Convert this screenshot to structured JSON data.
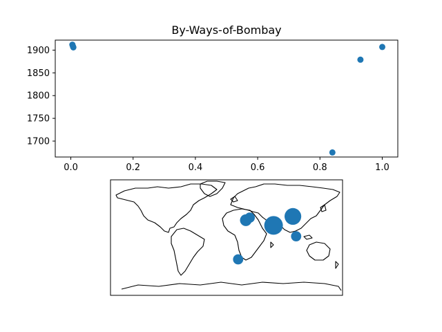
{
  "chart_data": [
    {
      "type": "scatter",
      "title": "By-Ways-of-Bombay",
      "xlabel": "",
      "ylabel": "",
      "xlim": [
        -0.05,
        1.05
      ],
      "ylim": [
        1665,
        1922
      ],
      "xticks": [
        0.0,
        0.2,
        0.4,
        0.6,
        0.8,
        1.0
      ],
      "xtick_labels": [
        "0.0",
        "0.2",
        "0.4",
        "0.6",
        "0.8",
        "1.0"
      ],
      "yticks": [
        1700,
        1750,
        1800,
        1850,
        1900
      ],
      "ytick_labels": [
        "1700",
        "1750",
        "1800",
        "1850",
        "1900"
      ],
      "grid": false,
      "legend": "none",
      "color": "#1f77b4",
      "points": [
        {
          "x": 0.005,
          "y": 1912
        },
        {
          "x": 0.007,
          "y": 1908
        },
        {
          "x": 0.008,
          "y": 1906
        },
        {
          "x": 0.84,
          "y": 1675
        },
        {
          "x": 0.93,
          "y": 1879
        },
        {
          "x": 1.0,
          "y": 1907
        }
      ]
    },
    {
      "type": "scatter",
      "subtype": "geographic bubble map",
      "projection": "plate-carree",
      "xlim": [
        -180,
        180
      ],
      "ylim": [
        -90,
        90
      ],
      "color": "#1f77b4",
      "points": [
        {
          "lon": 73,
          "lat": 19,
          "size": 5
        },
        {
          "lon": 103,
          "lat": 33,
          "size": 4
        },
        {
          "lon": 30,
          "lat": 27,
          "size": 2
        },
        {
          "lon": 36,
          "lat": 31,
          "size": 1.5
        },
        {
          "lon": 108,
          "lat": 2,
          "size": 1.5
        },
        {
          "lon": 18,
          "lat": -34,
          "size": 1.5
        }
      ]
    }
  ]
}
